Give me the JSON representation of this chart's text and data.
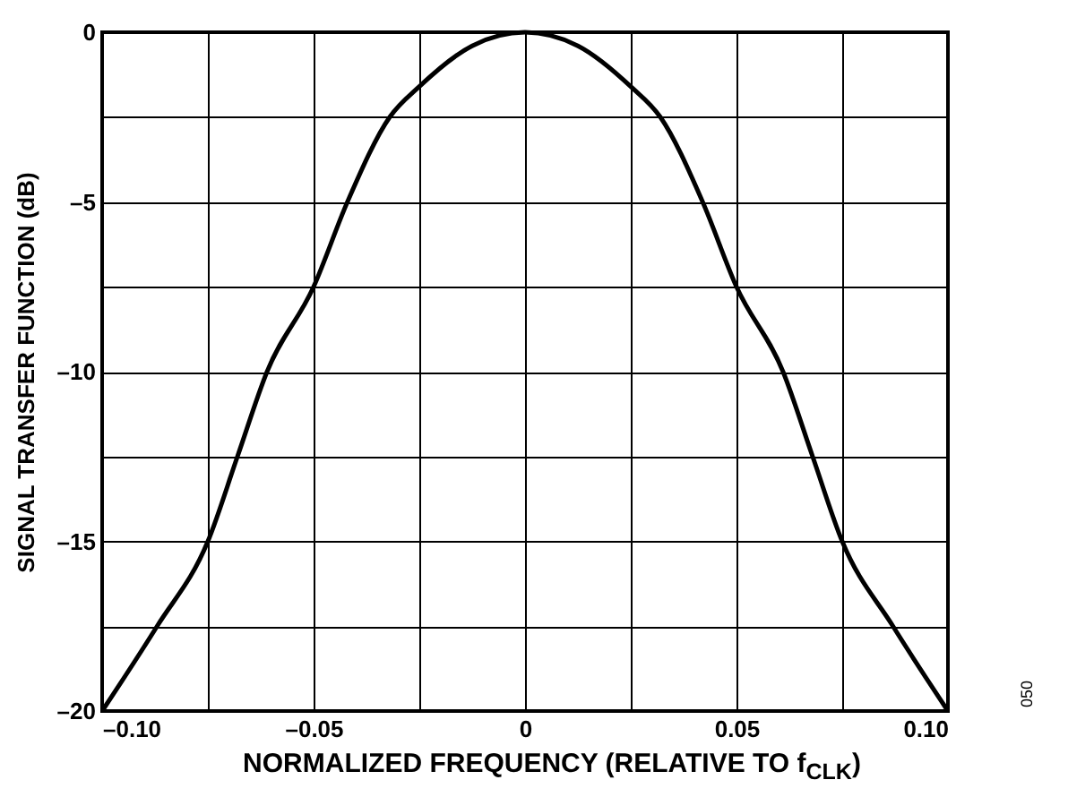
{
  "chart_data": {
    "type": "line",
    "xlabel": "NORMALIZED FREQUENCY (RELATIVE TO f$_{CLK}$)",
    "ylabel": "SIGNAL TRANSFER FUNCTION (dB)",
    "annotations": [
      "050"
    ],
    "x": [
      -0.1,
      -0.087,
      -0.075,
      -0.068,
      -0.061,
      -0.05,
      -0.042,
      -0.032,
      -0.025,
      -0.0125,
      0,
      0.0125,
      0.025,
      0.032,
      0.042,
      0.05,
      0.061,
      0.068,
      0.075,
      0.087,
      0.1
    ],
    "series": [
      {
        "color": "#000000",
        "values": [
          -20,
          -17.5,
          -15,
          -12.5,
          -10,
          -7.5,
          -5,
          -2.5,
          -1.6,
          -0.4,
          0,
          -0.4,
          -1.6,
          -2.5,
          -5,
          -7.5,
          -10,
          -12.5,
          -15,
          -17.5,
          -20
        ]
      }
    ],
    "xlim": [
      -0.1,
      0.1
    ],
    "xticks": [
      {
        "value": -0.1,
        "label": "–0.10"
      },
      {
        "value": -0.075,
        "label": null
      },
      {
        "value": -0.05,
        "label": "–0.05"
      },
      {
        "value": -0.025,
        "label": null
      },
      0,
      {
        "value": 0.025,
        "label": null
      },
      {
        "value": 0.05,
        "label": "0.05"
      },
      {
        "value": 0.075,
        "label": null
      },
      {
        "value": 0.1,
        "label": "0.10"
      }
    ],
    "ylim": [
      -20,
      0
    ],
    "yticks": [
      {
        "value": -20,
        "label": "–20"
      },
      {
        "value": -17.5,
        "label": null
      },
      {
        "value": -15,
        "label": "–15"
      },
      {
        "value": -12.5,
        "label": null
      },
      {
        "value": -10,
        "label": "–10"
      },
      {
        "value": -7.5,
        "label": null
      },
      {
        "value": -5,
        "label": "–5"
      },
      {
        "value": -2.5,
        "label": null
      },
      0
    ],
    "grid": true,
    "line_style": "solid"
  }
}
